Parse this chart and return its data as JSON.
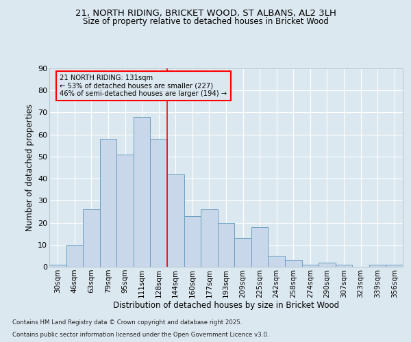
{
  "title1": "21, NORTH RIDING, BRICKET WOOD, ST ALBANS, AL2 3LH",
  "title2": "Size of property relative to detached houses in Bricket Wood",
  "xlabel": "Distribution of detached houses by size in Bricket Wood",
  "ylabel": "Number of detached properties",
  "bar_color": "#c8d8ea",
  "bar_edge_color": "#6a9fbf",
  "background_color": "#dce8f0",
  "grid_color": "#ffffff",
  "categories": [
    "30sqm",
    "46sqm",
    "63sqm",
    "79sqm",
    "95sqm",
    "111sqm",
    "128sqm",
    "144sqm",
    "160sqm",
    "177sqm",
    "193sqm",
    "209sqm",
    "225sqm",
    "242sqm",
    "258sqm",
    "274sqm",
    "290sqm",
    "307sqm",
    "323sqm",
    "339sqm",
    "356sqm"
  ],
  "values": [
    1,
    10,
    26,
    58,
    51,
    68,
    58,
    42,
    23,
    26,
    20,
    13,
    18,
    5,
    3,
    1,
    2,
    1,
    0,
    1,
    1
  ],
  "ylim": [
    0,
    90
  ],
  "yticks": [
    0,
    10,
    20,
    30,
    40,
    50,
    60,
    70,
    80,
    90
  ],
  "property_line_x": 6.5,
  "annotation_text": "21 NORTH RIDING: 131sqm\n← 53% of detached houses are smaller (227)\n46% of semi-detached houses are larger (194) →",
  "footnote1": "Contains HM Land Registry data © Crown copyright and database right 2025.",
  "footnote2": "Contains public sector information licensed under the Open Government Licence v3.0."
}
